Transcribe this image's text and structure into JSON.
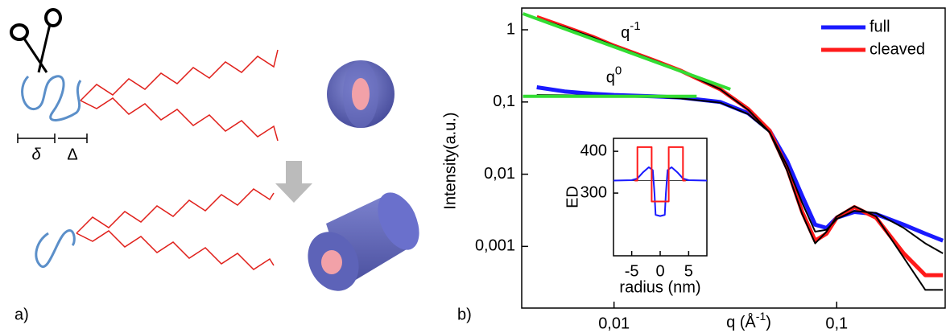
{
  "diagram": {
    "panel_label": "a)",
    "delta_small": "δ",
    "delta_large": "Δ"
  },
  "chart_data": {
    "type": "line",
    "panel_label": "b)",
    "y_label": "Intensity(a.u.)",
    "x_label": "q (Å",
    "x_label_exponent": "-1",
    "x_label_end": ")",
    "xscale": "log",
    "yscale": "log",
    "xlim": [
      0.00385,
      0.307
    ],
    "ylim": [
      0.00014,
      2
    ],
    "xticks": [
      {
        "value": 0.01,
        "label": "0,01"
      },
      {
        "value": 0.1,
        "label": "0,1"
      }
    ],
    "yticks": [
      {
        "value": 0.001,
        "label": "0,001"
      },
      {
        "value": 0.01,
        "label": "0,01"
      },
      {
        "value": 0.1,
        "label": "0,1"
      },
      1
    ],
    "legend": "upper right",
    "series": [
      {
        "name": "full",
        "color": "#1a1aff",
        "x": [
          0.0045,
          0.006,
          0.008,
          0.01,
          0.015,
          0.02,
          0.03,
          0.04,
          0.05,
          0.06,
          0.07,
          0.08,
          0.09,
          0.1,
          0.12,
          0.15,
          0.2,
          0.25,
          0.3
        ],
        "values": [
          0.16,
          0.14,
          0.13,
          0.125,
          0.12,
          0.115,
          0.1,
          0.07,
          0.04,
          0.015,
          0.005,
          0.002,
          0.0018,
          0.0025,
          0.003,
          0.0028,
          0.002,
          0.0015,
          0.0012
        ]
      },
      {
        "name": "cleaved",
        "color": "#ff1a1a",
        "x": [
          0.0045,
          0.006,
          0.008,
          0.01,
          0.015,
          0.02,
          0.03,
          0.04,
          0.05,
          0.06,
          0.07,
          0.08,
          0.09,
          0.1,
          0.12,
          0.15,
          0.2,
          0.25,
          0.3
        ],
        "values": [
          1.5,
          1.1,
          0.8,
          0.6,
          0.38,
          0.27,
          0.15,
          0.08,
          0.04,
          0.012,
          0.003,
          0.0012,
          0.0015,
          0.0025,
          0.0035,
          0.0025,
          0.0008,
          0.0004,
          0.0004
        ]
      },
      {
        "color": "#000000",
        "x": [
          0.0045,
          0.006,
          0.008,
          0.01,
          0.015,
          0.02,
          0.03,
          0.04,
          0.05,
          0.06,
          0.07,
          0.08,
          0.09,
          0.1,
          0.12,
          0.15,
          0.2,
          0.25,
          0.3
        ],
        "values": [
          0.125,
          0.124,
          0.123,
          0.122,
          0.118,
          0.112,
          0.098,
          0.068,
          0.038,
          0.013,
          0.004,
          0.0016,
          0.0017,
          0.0024,
          0.0031,
          0.0029,
          0.0018,
          0.0011,
          0.0008
        ]
      },
      {
        "color": "#000000",
        "x": [
          0.0045,
          0.006,
          0.008,
          0.01,
          0.015,
          0.02,
          0.03,
          0.04,
          0.05,
          0.06,
          0.07,
          0.08,
          0.09,
          0.1,
          0.12,
          0.15,
          0.2,
          0.25,
          0.3
        ],
        "values": [
          1.45,
          1.08,
          0.79,
          0.6,
          0.38,
          0.27,
          0.15,
          0.078,
          0.038,
          0.011,
          0.0028,
          0.0011,
          0.0016,
          0.0026,
          0.0036,
          0.0026,
          0.0007,
          0.00025,
          0.00025
        ]
      }
    ],
    "guides": [
      {
        "label": "q",
        "exponent": "-1",
        "color": "#33dd33",
        "x": [
          0.0039,
          0.0333
        ],
        "values": [
          1.67,
          0.15
        ]
      },
      {
        "label": "q",
        "exponent": "0",
        "color": "#33dd33",
        "x": [
          0.0039,
          0.0235
        ],
        "values": [
          0.12,
          0.12
        ]
      }
    ],
    "inset": {
      "type": "line",
      "y_label": "ED",
      "x_label": "radius (nm)",
      "xlim": [
        -8.2,
        8.2
      ],
      "ylim": [
        150,
        431
      ],
      "xticks": [
        -5,
        0,
        5
      ],
      "yticks": [
        300,
        400
      ],
      "hline": 330,
      "series": [
        {
          "color": "#1a1aff",
          "x": [
            -8.2,
            -5,
            -4,
            -3,
            -2,
            -1.3,
            -1,
            -0.8,
            0,
            0.8,
            1,
            1.3,
            2,
            3,
            4,
            5,
            8.2
          ],
          "values": [
            330,
            331,
            335,
            350,
            362,
            355,
            300,
            248,
            245,
            248,
            300,
            355,
            362,
            350,
            335,
            331,
            330
          ]
        },
        {
          "color": "#ff1a1a",
          "x": [
            -4.5,
            -4,
            -4,
            -1.5,
            -1.5,
            1.5,
            1.5,
            4,
            4,
            4.5
          ],
          "values": [
            330,
            330,
            410,
            410,
            280,
            280,
            410,
            410,
            330,
            330
          ]
        }
      ]
    }
  }
}
